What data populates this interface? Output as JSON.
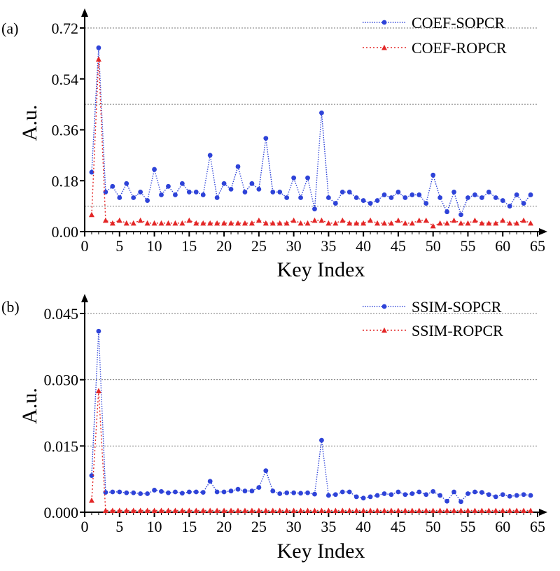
{
  "chart_data": [
    {
      "panel": "(a)",
      "type": "line",
      "xlabel": "Key Index",
      "ylabel": "A.u.",
      "xlim": [
        0,
        65
      ],
      "ylim": [
        0,
        0.72
      ],
      "xticks": [
        0,
        5,
        10,
        15,
        20,
        25,
        30,
        35,
        40,
        45,
        50,
        55,
        60,
        65
      ],
      "yticks": [
        0.0,
        0.18,
        0.36,
        0.54,
        0.72
      ],
      "ytick_labels": [
        "0.00",
        "0.18",
        "0.36",
        "0.54",
        "0.72"
      ],
      "gridlines_y": [
        0.09,
        0.45,
        0.72
      ],
      "legend_position": "top-right",
      "x": [
        1,
        2,
        3,
        4,
        5,
        6,
        7,
        8,
        9,
        10,
        11,
        12,
        13,
        14,
        15,
        16,
        17,
        18,
        19,
        20,
        21,
        22,
        23,
        24,
        25,
        26,
        27,
        28,
        29,
        30,
        31,
        32,
        33,
        34,
        35,
        36,
        37,
        38,
        39,
        40,
        41,
        42,
        43,
        44,
        45,
        46,
        47,
        48,
        49,
        50,
        51,
        52,
        53,
        54,
        55,
        56,
        57,
        58,
        59,
        60,
        61,
        62,
        63,
        64
      ],
      "series": [
        {
          "name": "COEF-SOPCR",
          "color": "#2e43d8",
          "marker": "circle",
          "values": [
            0.21,
            0.65,
            0.14,
            0.16,
            0.12,
            0.17,
            0.12,
            0.14,
            0.11,
            0.22,
            0.13,
            0.16,
            0.13,
            0.17,
            0.14,
            0.14,
            0.13,
            0.27,
            0.12,
            0.17,
            0.15,
            0.23,
            0.14,
            0.17,
            0.15,
            0.33,
            0.14,
            0.14,
            0.12,
            0.19,
            0.12,
            0.19,
            0.08,
            0.42,
            0.12,
            0.1,
            0.14,
            0.14,
            0.12,
            0.11,
            0.1,
            0.11,
            0.13,
            0.12,
            0.14,
            0.12,
            0.13,
            0.13,
            0.1,
            0.2,
            0.12,
            0.07,
            0.14,
            0.06,
            0.12,
            0.13,
            0.12,
            0.14,
            0.12,
            0.11,
            0.09,
            0.13,
            0.1,
            0.13
          ]
        },
        {
          "name": "COEF-ROPCR",
          "color": "#e32626",
          "marker": "triangle",
          "values": [
            0.06,
            0.61,
            0.04,
            0.03,
            0.04,
            0.03,
            0.03,
            0.04,
            0.03,
            0.03,
            0.03,
            0.03,
            0.03,
            0.03,
            0.04,
            0.03,
            0.03,
            0.03,
            0.03,
            0.03,
            0.03,
            0.03,
            0.03,
            0.03,
            0.04,
            0.03,
            0.03,
            0.03,
            0.03,
            0.04,
            0.03,
            0.03,
            0.04,
            0.04,
            0.03,
            0.03,
            0.04,
            0.03,
            0.03,
            0.03,
            0.04,
            0.03,
            0.03,
            0.03,
            0.04,
            0.03,
            0.03,
            0.04,
            0.04,
            0.02,
            0.03,
            0.03,
            0.04,
            0.03,
            0.03,
            0.04,
            0.03,
            0.03,
            0.03,
            0.04,
            0.03,
            0.03,
            0.04,
            0.03
          ]
        }
      ]
    },
    {
      "panel": "(b)",
      "type": "line",
      "xlabel": "Key Index",
      "ylabel": "A.u.",
      "xlim": [
        0,
        65
      ],
      "ylim": [
        0,
        0.045
      ],
      "xticks": [
        0,
        5,
        10,
        15,
        20,
        25,
        30,
        35,
        40,
        45,
        50,
        55,
        60,
        65
      ],
      "yticks": [
        0.0,
        0.015,
        0.03,
        0.045
      ],
      "ytick_labels": [
        "0.000",
        "0.015",
        "0.030",
        "0.045"
      ],
      "gridlines_y": [
        0.015,
        0.03,
        0.045
      ],
      "legend_position": "top-right",
      "x": [
        1,
        2,
        3,
        4,
        5,
        6,
        7,
        8,
        9,
        10,
        11,
        12,
        13,
        14,
        15,
        16,
        17,
        18,
        19,
        20,
        21,
        22,
        23,
        24,
        25,
        26,
        27,
        28,
        29,
        30,
        31,
        32,
        33,
        34,
        35,
        36,
        37,
        38,
        39,
        40,
        41,
        42,
        43,
        44,
        45,
        46,
        47,
        48,
        49,
        50,
        51,
        52,
        53,
        54,
        55,
        56,
        57,
        58,
        59,
        60,
        61,
        62,
        63,
        64
      ],
      "series": [
        {
          "name": "SSIM-SOPCR",
          "color": "#2e43d8",
          "marker": "circle",
          "values": [
            0.0083,
            0.041,
            0.0045,
            0.0046,
            0.0046,
            0.0044,
            0.0044,
            0.0042,
            0.0042,
            0.005,
            0.0047,
            0.0044,
            0.0046,
            0.0043,
            0.0046,
            0.0046,
            0.0045,
            0.007,
            0.0046,
            0.0046,
            0.0048,
            0.0052,
            0.0048,
            0.0048,
            0.0056,
            0.0094,
            0.0048,
            0.0042,
            0.0044,
            0.0044,
            0.0043,
            0.0044,
            0.0041,
            0.0163,
            0.0038,
            0.004,
            0.0046,
            0.0046,
            0.0035,
            0.0032,
            0.0035,
            0.0038,
            0.0042,
            0.004,
            0.0046,
            0.004,
            0.0042,
            0.0046,
            0.004,
            0.0047,
            0.0038,
            0.0025,
            0.0046,
            0.0024,
            0.0042,
            0.0046,
            0.0045,
            0.004,
            0.0035,
            0.004,
            0.0036,
            0.0038,
            0.004,
            0.0038
          ]
        },
        {
          "name": "SSIM-ROPCR",
          "color": "#e32626",
          "marker": "triangle",
          "values": [
            0.0027,
            0.0275,
            0.0004,
            0.0004,
            0.0004,
            0.0004,
            0.0004,
            0.0004,
            0.0004,
            0.0004,
            0.0004,
            0.0004,
            0.0004,
            0.0004,
            0.0004,
            0.0004,
            0.0004,
            0.0004,
            0.0004,
            0.0004,
            0.0004,
            0.0004,
            0.0004,
            0.0004,
            0.0004,
            0.0004,
            0.0004,
            0.0004,
            0.0004,
            0.0004,
            0.0004,
            0.0004,
            0.0004,
            0.0004,
            0.0004,
            0.0004,
            0.0004,
            0.0004,
            0.0004,
            0.0004,
            0.0004,
            0.0004,
            0.0004,
            0.0004,
            0.0004,
            0.0004,
            0.0004,
            0.0004,
            0.0004,
            0.0004,
            0.0004,
            0.0004,
            0.0004,
            0.0004,
            0.0004,
            0.0004,
            0.0004,
            0.0004,
            0.0004,
            0.0004,
            0.0004,
            0.0004,
            0.0004,
            0.0004
          ]
        }
      ]
    }
  ]
}
